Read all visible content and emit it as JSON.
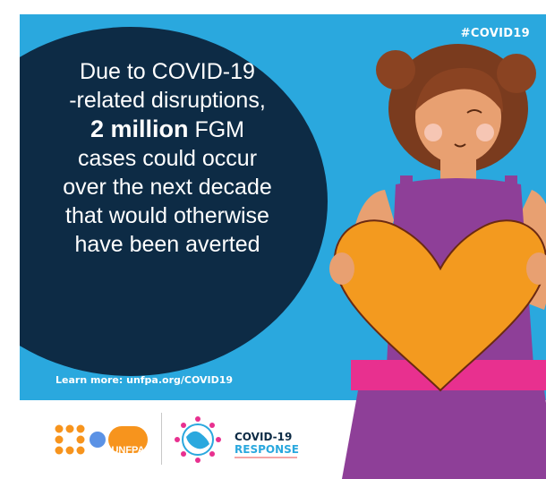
{
  "hashtag": "#COVID19",
  "message": {
    "line1": "Due to COVID-19",
    "line2": "-related disruptions,",
    "emphasis": "2 million",
    "line3_rest": " FGM",
    "line4": "cases could occur",
    "line5": "over the next decade",
    "line6": "that would otherwise",
    "line7": "have been averted"
  },
  "learn_more": "Learn more: unfpa.org/COVID19",
  "logos": {
    "unfpa": "UNFPA",
    "covid_line1": "COVID-19",
    "covid_line2": "RESPONSE"
  },
  "colors": {
    "sky": "#2aa8de",
    "bubble": "#0d2b45",
    "heart": "#f39a1f",
    "dress_purple": "#8e3f98",
    "belt_pink": "#e8308f",
    "unfpa_orange": "#f7941d"
  }
}
